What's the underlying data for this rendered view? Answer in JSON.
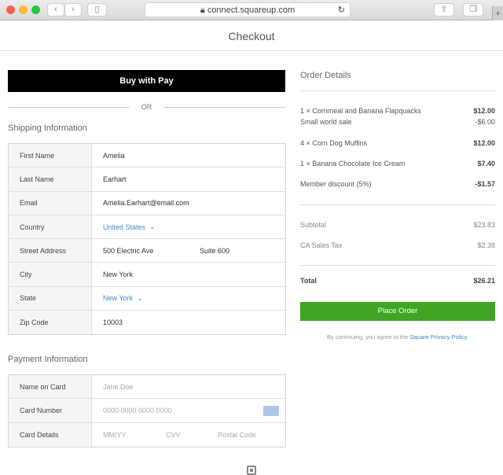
{
  "browser": {
    "url": "connect.squareup.com"
  },
  "header": {
    "title": "Checkout"
  },
  "apple_pay": {
    "label": "Buy with  Pay"
  },
  "divider": "OR",
  "shipping": {
    "title": "Shipping Information",
    "fields": [
      {
        "label": "First Name",
        "value": "Amelia"
      },
      {
        "label": "Last Name",
        "value": "Earhart"
      },
      {
        "label": "Email",
        "value": "Amelia.Earhart@email.com"
      },
      {
        "label": "Country",
        "value": "United States"
      },
      {
        "label": "Street Address",
        "value": "500 Electric Ave",
        "value2": "Suite 600"
      },
      {
        "label": "City",
        "value": "New York"
      },
      {
        "label": "State",
        "value": "New York"
      },
      {
        "label": "Zip Code",
        "value": "10003"
      }
    ]
  },
  "payment": {
    "title": "Payment Information",
    "fields": [
      {
        "label": "Name on Card",
        "placeholder": "Jane Doe"
      },
      {
        "label": "Card Number",
        "placeholder": "0000 0000 0000 0000"
      },
      {
        "label": "Card Details",
        "placeholders": [
          "MM/YY",
          "CVV",
          "Postal Code"
        ]
      }
    ]
  },
  "order": {
    "title": "Order Details",
    "items": [
      {
        "name": "1 × Cornmeal and Banana Flapquacks",
        "price": "$12.00",
        "note": "Small world sale",
        "note_price": "-$6.00"
      },
      {
        "name": "4 × Corn Dog Muffins",
        "price": "$12.00"
      },
      {
        "name": "1 × Banana Chocolate Ice Cream",
        "price": "$7.40"
      },
      {
        "name": "Member discount (5%)",
        "price": "-$1.57"
      }
    ],
    "subtotal_label": "Subtotal",
    "subtotal": "$23.83",
    "tax_label": "CA Sales Tax",
    "tax": "$2.38",
    "total_label": "Total",
    "total": "$26.21",
    "place_order": "Place Order",
    "terms_prefix": "By continuing, you agree to the ",
    "terms_link": "Square Privacy Policy",
    "terms_suffix": "."
  },
  "colors": {
    "accent": "#3fa522",
    "link": "#3e8acc"
  }
}
